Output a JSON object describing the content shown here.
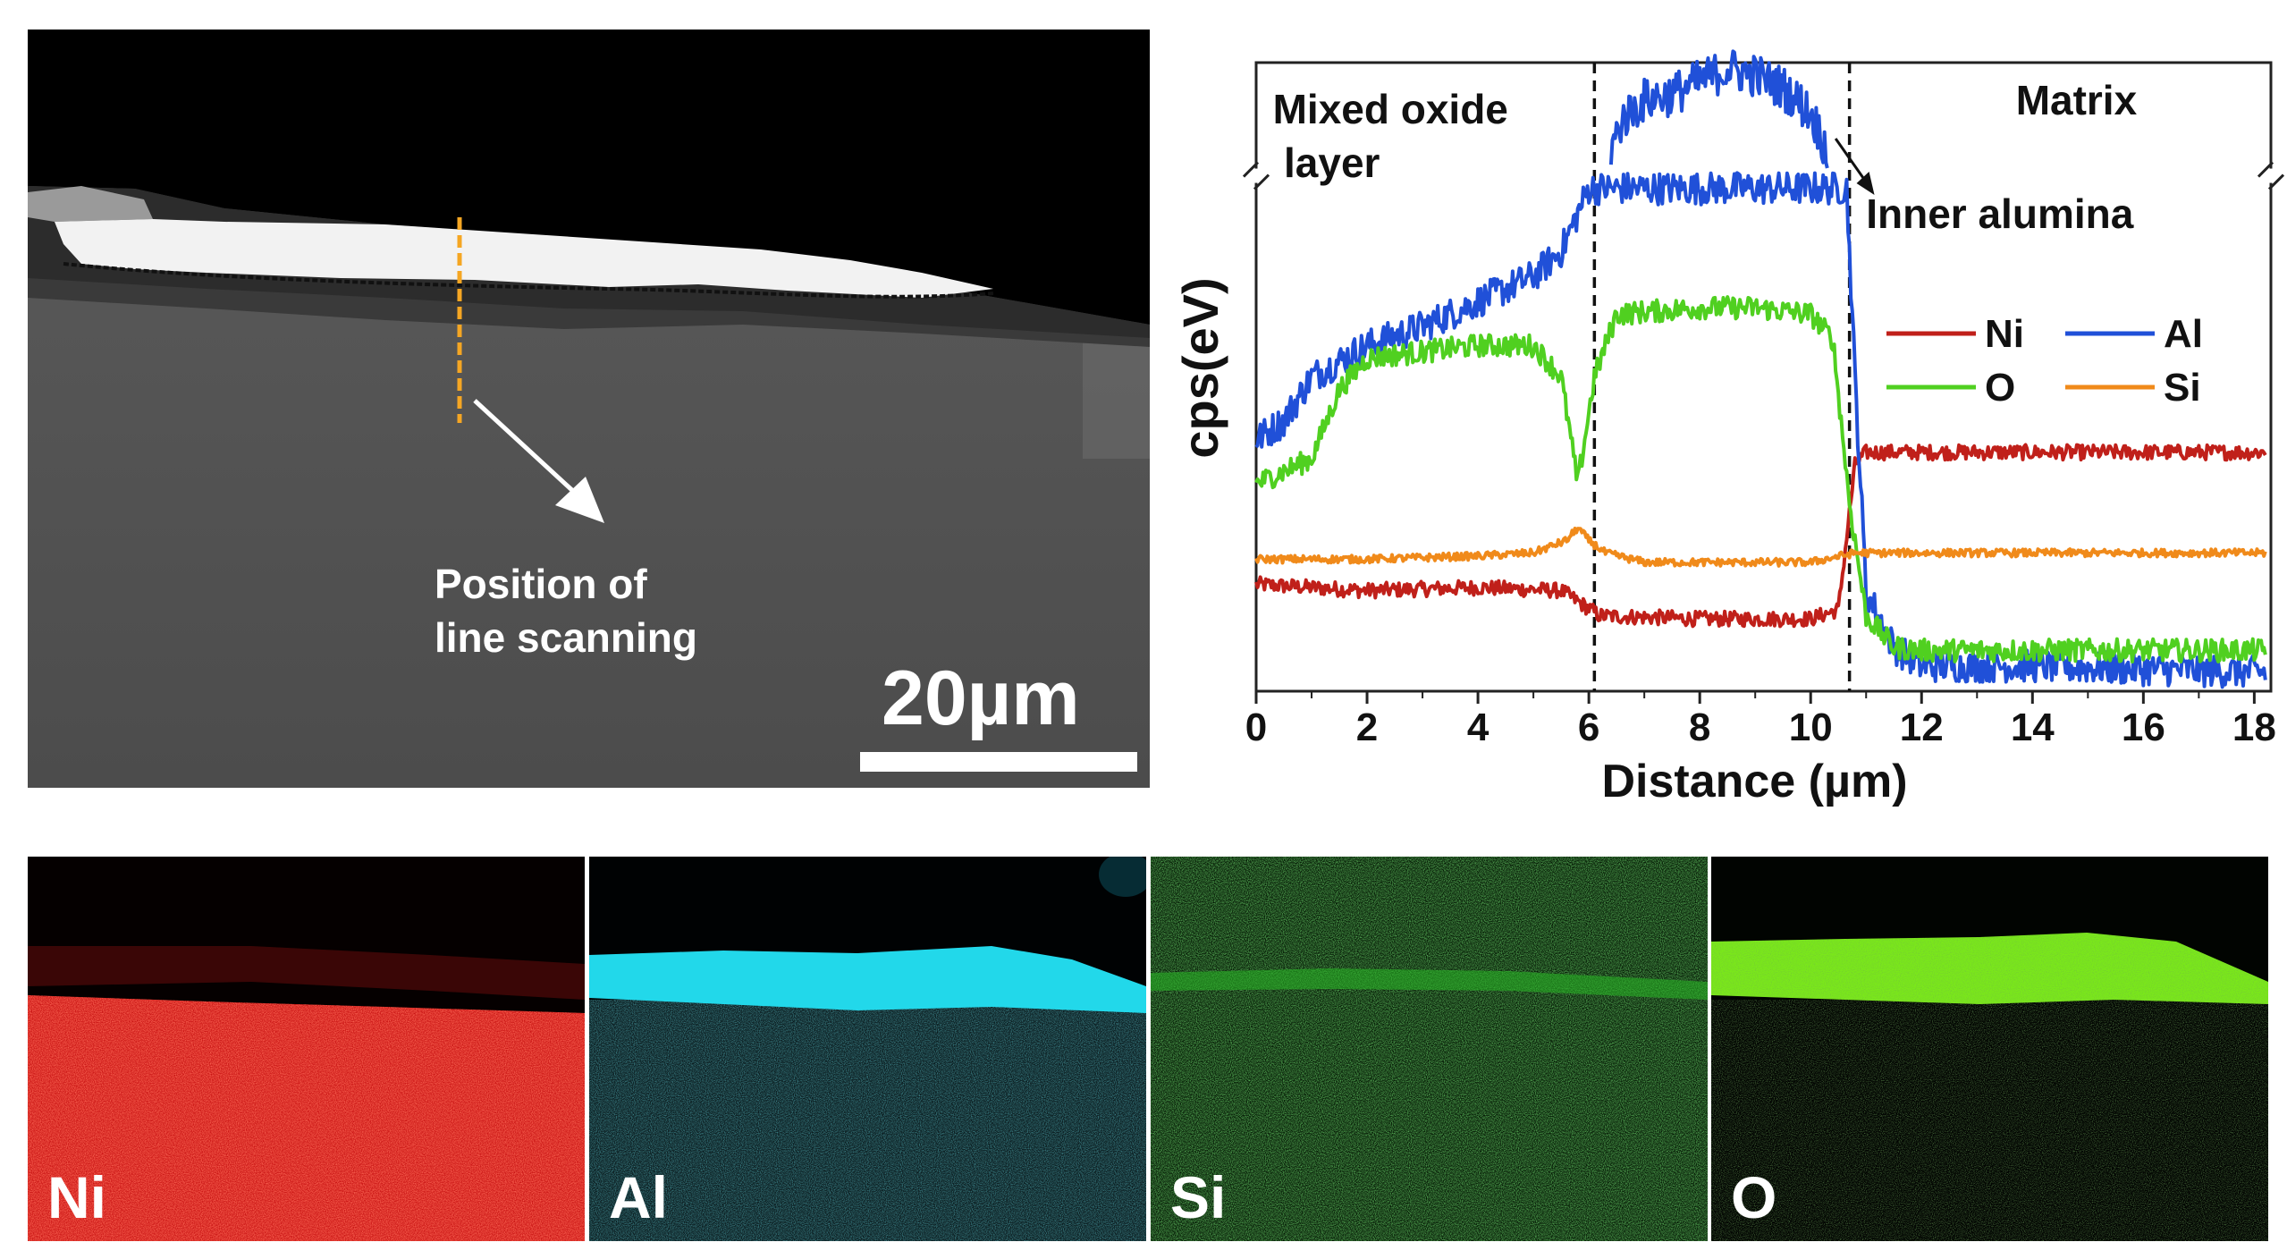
{
  "sem_image": {
    "line_scan_label_line1": "Position of",
    "line_scan_label_line2": "line scanning",
    "scale_bar_label": "20µm",
    "colors": {
      "scan_line": "#f5a623",
      "arrow": "#ffffff"
    }
  },
  "eds_maps": [
    {
      "element": "Ni",
      "color": "#e81010"
    },
    {
      "element": "Al",
      "color": "#19d8e8"
    },
    {
      "element": "Si",
      "color": "#2ed02a"
    },
    {
      "element": "O",
      "color": "#7ae81a"
    }
  ],
  "chart_data": {
    "type": "line",
    "xlabel": "Distance (µm)",
    "ylabel": "cps(eV)",
    "xlim": [
      0,
      18.3
    ],
    "ylim": [
      0,
      100
    ],
    "y_axis_break": true,
    "x_ticks": [
      0,
      2,
      4,
      6,
      8,
      10,
      12,
      14,
      16,
      18
    ],
    "x_tick_labels": [
      "0",
      "2",
      "4",
      "6",
      "8",
      "10",
      "12",
      "14",
      "16",
      "18"
    ],
    "region_boundaries": [
      6.1,
      10.7
    ],
    "annotations": [
      {
        "text": "Mixed oxide",
        "x": 0.3
      },
      {
        "text": "layer",
        "x": 0.5
      },
      {
        "text": "Matrix",
        "x": 13.7
      },
      {
        "text": "Inner alumina",
        "x": 11
      }
    ],
    "legend": {
      "placement": "right",
      "entries": [
        "Ni",
        "Al",
        "O",
        "Si"
      ]
    },
    "series": [
      {
        "name": "Ni",
        "color": "#c0201a",
        "x": [
          0,
          2,
          4,
          5.5,
          6.2,
          8,
          10,
          10.5,
          10.8,
          11,
          12,
          14,
          16,
          18.2
        ],
        "y": [
          17,
          16,
          16.5,
          16,
          12,
          11.5,
          11.5,
          13,
          36,
          38,
          38,
          38,
          38,
          38
        ]
      },
      {
        "name": "Al",
        "color": "#2050d8",
        "x": [
          0,
          0.5,
          1,
          2,
          3,
          4,
          5,
          5.5,
          5.8,
          6.0,
          10.65,
          10.8,
          11,
          11.5,
          12,
          14,
          16,
          18.2
        ],
        "y": [
          40,
          43,
          50,
          55,
          58,
          62,
          66,
          70,
          76,
          80,
          80,
          50,
          16,
          7,
          4,
          4,
          3.5,
          3
        ]
      },
      {
        "name": "O",
        "color": "#50d020",
        "x": [
          0,
          1,
          1.5,
          2,
          3,
          4,
          5,
          5.5,
          5.8,
          6.1,
          6.5,
          8,
          9,
          10,
          10.4,
          10.7,
          11,
          11.5,
          12,
          14,
          16,
          18.2
        ],
        "y": [
          33,
          37,
          48,
          53,
          54,
          55,
          55,
          50,
          33,
          50,
          60,
          61,
          61,
          60,
          56,
          30,
          12,
          7,
          6.5,
          6.5,
          6.5,
          6.5
        ]
      },
      {
        "name": "Si",
        "color": "#f08a1a",
        "x": [
          0,
          2,
          4,
          5,
          5.6,
          5.8,
          6.0,
          6.3,
          7,
          10,
          10.8,
          11,
          12,
          14,
          16,
          18.2
        ],
        "y": [
          21,
          21,
          21.5,
          22,
          24,
          26,
          24,
          22,
          20.5,
          20.5,
          22,
          22,
          22,
          22,
          22,
          22
        ]
      },
      {
        "name": "Al (above break)",
        "color": "#2050d8",
        "x": [
          6.4,
          6.6,
          7,
          7.5,
          8,
          8.5,
          9,
          9.5,
          10,
          10.3
        ],
        "y": [
          86,
          91,
          94,
          95,
          97,
          99,
          98,
          96,
          92,
          86
        ]
      }
    ]
  }
}
